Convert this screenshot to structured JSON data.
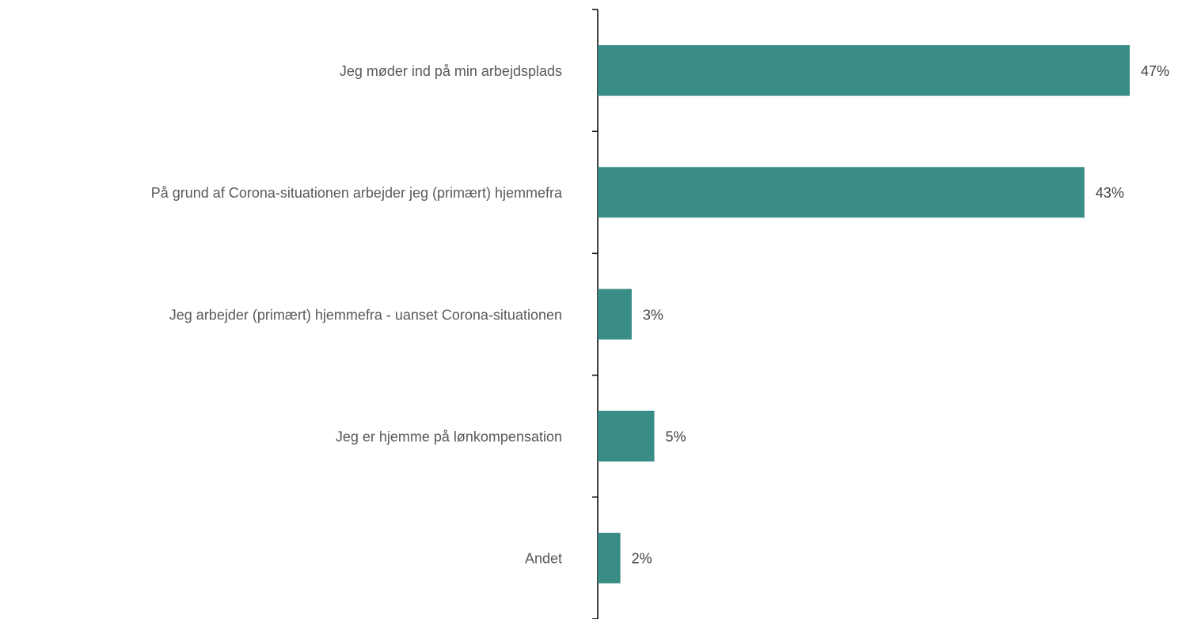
{
  "chart_data": {
    "type": "barh",
    "categories": [
      "Jeg møder ind på min arbejdsplads",
      "På grund af Corona-situationen arbejder jeg (primært) hjemmefra",
      "Jeg arbejder (primært) hjemmefra - uanset Corona-situationen",
      "Jeg er hjemme på lønkompensation",
      "Andet"
    ],
    "values": [
      47,
      43,
      3,
      5,
      2
    ],
    "value_labels": [
      "47%",
      "43%",
      "3%",
      "5%",
      "2%"
    ],
    "color": "#3a8d86"
  }
}
